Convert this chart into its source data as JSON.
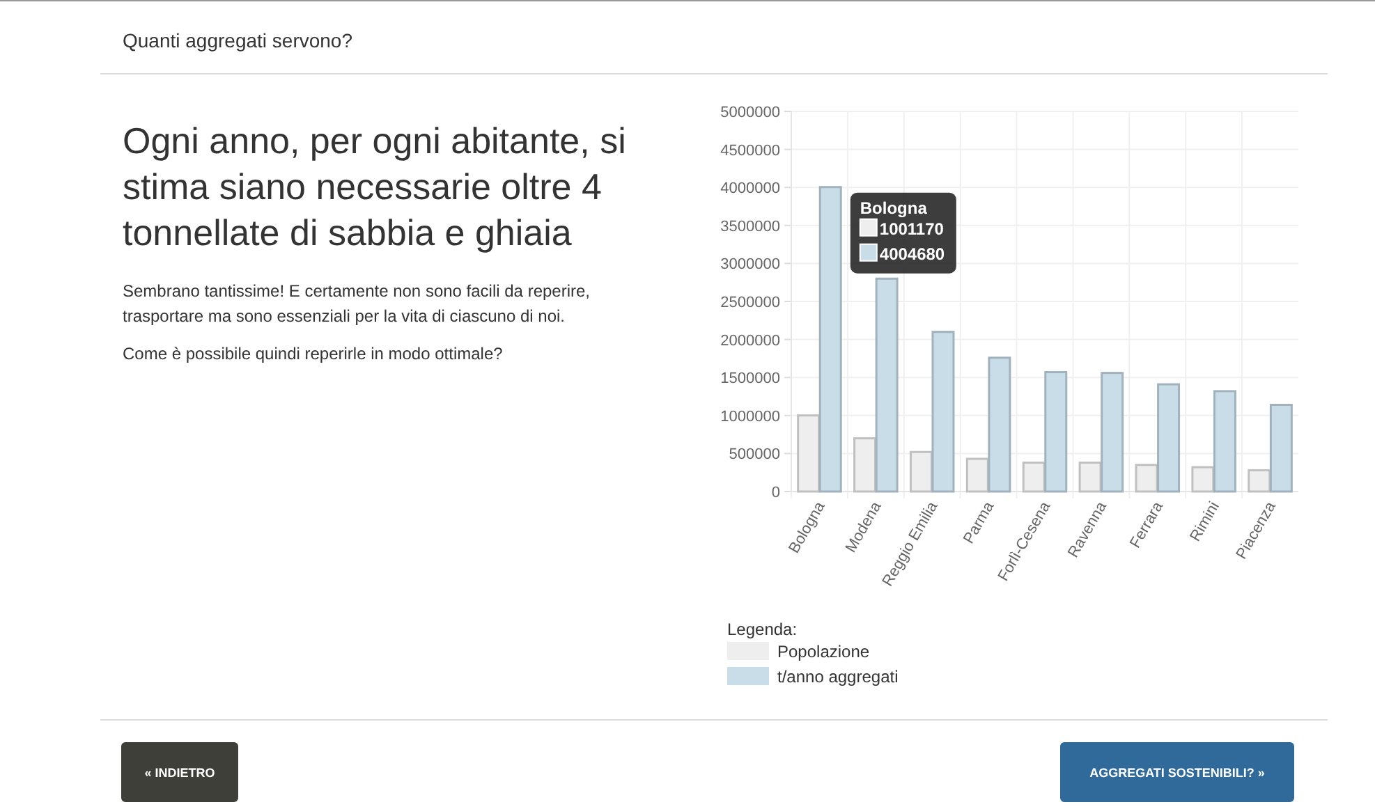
{
  "chart_data": {
    "type": "bar",
    "title": "Quanti aggregati servono?",
    "subtitle": "Ogni anno, per ogni abitante, si stima siano necessarie oltre 4 tonnellate di sabbia e ghiaia",
    "categories": [
      "Bologna",
      "Modena",
      "Reggio Emilia",
      "Parma",
      "Forlì-Cesena",
      "Ravenna",
      "Ferrara",
      "Rimini",
      "Piacenza"
    ],
    "series": [
      {
        "name": "Popolazione",
        "color": "#eeeeee",
        "values": [
          1001170,
          700000,
          520000,
          430000,
          380000,
          380000,
          350000,
          320000,
          280000
        ]
      },
      {
        "name": "t/anno aggregati",
        "color": "#c9dde9",
        "values": [
          4004680,
          2800000,
          2100000,
          1760000,
          1570000,
          1560000,
          1410000,
          1320000,
          1140000
        ]
      }
    ],
    "ylim": [
      0,
      5000000
    ],
    "yticks": [
      0,
      500000,
      1000000,
      1500000,
      2000000,
      2500000,
      3000000,
      3500000,
      4000000,
      4500000,
      5000000
    ],
    "grid": true,
    "legend": "bottom",
    "legend_title": "Legenda:",
    "annotations": [
      "Sembrano tantissime! E certamente non sono facili da reperire, trasportare ma sono essenziali per la vita di ciascuno di noi.",
      "Come è possibile quindi reperirle in modo ottimale?",
      "« INDIETRO",
      "AGGREGATI SOSTENIBILI? »",
      "Bologna",
      "1001170",
      "4004680"
    ]
  }
}
